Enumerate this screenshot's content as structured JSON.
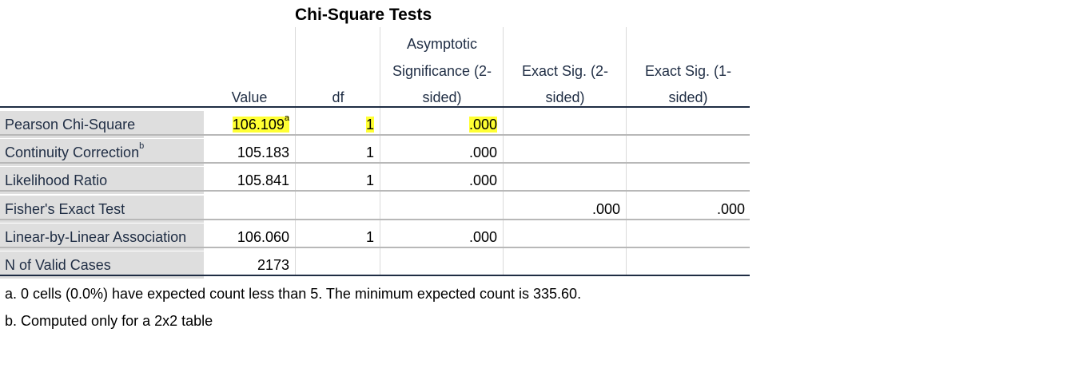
{
  "title": "Chi-Square Tests",
  "columns": {
    "value": "Value",
    "df": "df",
    "asymp_line1": "Asymptotic",
    "asymp_line2": "Significance (2-",
    "asymp_line3": "sided)",
    "exact2_line1": "Exact Sig. (2-",
    "exact2_line2": "sided)",
    "exact1_line1": "Exact Sig. (1-",
    "exact1_line2": "sided)"
  },
  "rows": [
    {
      "label": "Pearson Chi-Square",
      "sup": "",
      "value": "106.109",
      "value_sup": "a",
      "df": "1",
      "asymp": ".000",
      "exact2": "",
      "exact1": ""
    },
    {
      "label": "Continuity Correction",
      "sup": "b",
      "value": "105.183",
      "value_sup": "",
      "df": "1",
      "asymp": ".000",
      "exact2": "",
      "exact1": ""
    },
    {
      "label": "Likelihood Ratio",
      "sup": "",
      "value": "105.841",
      "value_sup": "",
      "df": "1",
      "asymp": ".000",
      "exact2": "",
      "exact1": ""
    },
    {
      "label": "Fisher's Exact Test",
      "sup": "",
      "value": "",
      "value_sup": "",
      "df": "",
      "asymp": "",
      "exact2": ".000",
      "exact1": ".000"
    },
    {
      "label": "Linear-by-Linear Association",
      "sup": "",
      "value": "106.060",
      "value_sup": "",
      "df": "1",
      "asymp": ".000",
      "exact2": "",
      "exact1": ""
    },
    {
      "label": "N of Valid Cases",
      "sup": "",
      "value": "2173",
      "value_sup": "",
      "df": "",
      "asymp": "",
      "exact2": "",
      "exact1": ""
    }
  ],
  "footnotes": {
    "a": "a. 0 cells (0.0%) have expected count less than 5. The minimum expected count is 335.60.",
    "b": "b. Computed only for a 2x2 table"
  },
  "colors": {
    "highlight": "#ffff33",
    "label_bg": "#dedede",
    "text_dark": "#1f2d44"
  }
}
